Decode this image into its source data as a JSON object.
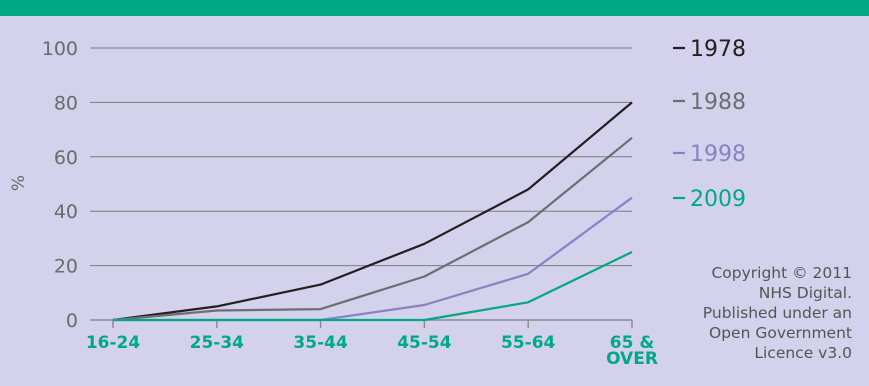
{
  "chart_data": {
    "type": "line",
    "title": "",
    "xlabel": "",
    "ylabel": "%",
    "ylim": [
      0,
      100
    ],
    "yticks": [
      0,
      20,
      40,
      60,
      80,
      100
    ],
    "grid": true,
    "legend_position": "right",
    "categories": [
      "16-24",
      "25-34",
      "35-44",
      "45-54",
      "55-64",
      "65 & OVER"
    ],
    "category_lines": [
      [
        "16-24"
      ],
      [
        "25-34"
      ],
      [
        "35-44"
      ],
      [
        "45-54"
      ],
      [
        "55-64"
      ],
      [
        "65 &",
        "OVER"
      ]
    ],
    "series": [
      {
        "name": "1978",
        "color": "#231f20",
        "values": [
          0,
          5,
          13,
          28,
          48,
          80
        ]
      },
      {
        "name": "1988",
        "color": "#6d6e71",
        "values": [
          0,
          3.5,
          4,
          16,
          36,
          67
        ]
      },
      {
        "name": "1998",
        "color": "#8683c4",
        "values": [
          0,
          0,
          0,
          5.5,
          17,
          45
        ]
      },
      {
        "name": "2009",
        "color": "#00a887",
        "values": [
          0,
          0,
          0,
          0,
          6.5,
          25
        ]
      }
    ]
  },
  "copyright": {
    "lines": [
      "Copyright © 2011",
      "NHS Digital.",
      "Published under an",
      "Open Government",
      "Licence v3.0"
    ]
  }
}
